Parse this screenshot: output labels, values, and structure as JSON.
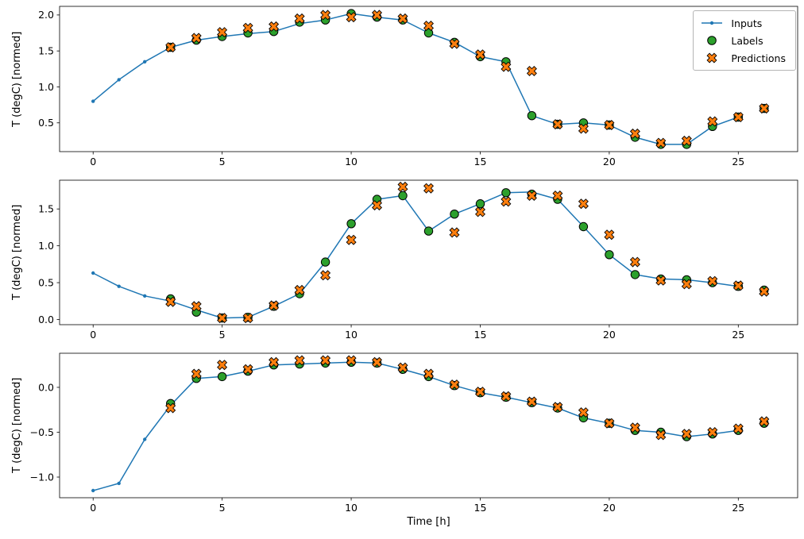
{
  "figure": {
    "background": "#ffffff"
  },
  "colors": {
    "inputs": "#1f77b4",
    "labels": "#2ca02c",
    "predictions": "#ff7f0e",
    "edge": "#000000"
  },
  "legend": {
    "items": [
      {
        "label": "Inputs"
      },
      {
        "label": "Labels"
      },
      {
        "label": "Predictions"
      }
    ]
  },
  "chart_data": [
    {
      "type": "line",
      "title": "",
      "ylabel": "T (degC) [normed]",
      "xlabel": "",
      "xlim": [
        -1.3,
        27.3
      ],
      "ylim": [
        0.1,
        2.12
      ],
      "xticks": [
        0,
        5,
        10,
        15,
        20,
        25
      ],
      "yticks": [
        0.5,
        1.0,
        1.5,
        2.0
      ],
      "grid": false,
      "legend_position": "upper right",
      "series": [
        {
          "name": "Inputs",
          "type": "line",
          "marker": "dot",
          "x": [
            0,
            1,
            2,
            3,
            4,
            5,
            6,
            7,
            8,
            9,
            10,
            11,
            12,
            13,
            14,
            15,
            16,
            17,
            18,
            19,
            20,
            21,
            22,
            23,
            24,
            25
          ],
          "y": [
            0.8,
            1.1,
            1.35,
            1.55,
            1.65,
            1.7,
            1.74,
            1.77,
            1.88,
            1.93,
            2.02,
            1.97,
            1.93,
            1.75,
            1.62,
            1.42,
            1.35,
            0.6,
            0.48,
            0.5,
            0.47,
            0.3,
            0.2,
            0.2,
            0.45,
            0.58
          ]
        },
        {
          "name": "Labels",
          "type": "scatter",
          "marker": "circle",
          "x": [
            3,
            4,
            5,
            6,
            7,
            8,
            9,
            10,
            11,
            12,
            13,
            14,
            15,
            16,
            17,
            18,
            19,
            20,
            21,
            22,
            23,
            24,
            25,
            26
          ],
          "y": [
            1.55,
            1.65,
            1.7,
            1.75,
            1.77,
            1.9,
            1.93,
            2.02,
            1.97,
            1.93,
            1.75,
            1.62,
            1.42,
            1.35,
            0.6,
            0.48,
            0.5,
            0.47,
            0.3,
            0.2,
            0.2,
            0.45,
            0.58,
            0.7
          ]
        },
        {
          "name": "Predictions",
          "type": "scatter",
          "marker": "X",
          "x": [
            3,
            4,
            5,
            6,
            7,
            8,
            9,
            10,
            11,
            12,
            13,
            14,
            15,
            16,
            17,
            18,
            19,
            20,
            21,
            22,
            23,
            24,
            25,
            26
          ],
          "y": [
            1.55,
            1.68,
            1.76,
            1.82,
            1.84,
            1.95,
            2.0,
            1.97,
            2.0,
            1.95,
            1.85,
            1.6,
            1.45,
            1.28,
            1.22,
            0.48,
            0.42,
            0.47,
            0.35,
            0.22,
            0.25,
            0.52,
            0.58,
            0.7
          ]
        }
      ]
    },
    {
      "type": "line",
      "title": "",
      "ylabel": "T (degC) [normed]",
      "xlabel": "",
      "xlim": [
        -1.3,
        27.3
      ],
      "ylim": [
        -0.07,
        1.89
      ],
      "xticks": [
        0,
        5,
        10,
        15,
        20,
        25
      ],
      "yticks": [
        0.0,
        0.5,
        1.0,
        1.5
      ],
      "grid": false,
      "series": [
        {
          "name": "Inputs",
          "type": "line",
          "marker": "dot",
          "x": [
            0,
            1,
            2,
            3,
            4,
            5,
            6,
            7,
            8,
            9,
            10,
            11,
            12,
            13,
            14,
            15,
            16,
            17,
            18,
            19,
            20,
            21,
            22,
            23,
            24,
            25
          ],
          "y": [
            0.63,
            0.45,
            0.32,
            0.25,
            0.13,
            0.02,
            0.03,
            0.18,
            0.35,
            0.78,
            1.3,
            1.63,
            1.68,
            1.2,
            1.43,
            1.57,
            1.72,
            1.73,
            1.63,
            1.26,
            0.88,
            0.61,
            0.55,
            0.54,
            0.5,
            0.45
          ]
        },
        {
          "name": "Labels",
          "type": "scatter",
          "marker": "circle",
          "x": [
            3,
            4,
            5,
            6,
            7,
            8,
            9,
            10,
            11,
            12,
            13,
            14,
            15,
            16,
            17,
            18,
            19,
            20,
            21,
            22,
            23,
            24,
            25,
            26
          ],
          "y": [
            0.28,
            0.1,
            0.02,
            0.03,
            0.18,
            0.35,
            0.78,
            1.3,
            1.63,
            1.68,
            1.2,
            1.43,
            1.57,
            1.72,
            1.7,
            1.63,
            1.26,
            0.88,
            0.61,
            0.55,
            0.54,
            0.5,
            0.45,
            0.4
          ]
        },
        {
          "name": "Predictions",
          "type": "scatter",
          "marker": "X",
          "x": [
            3,
            4,
            5,
            6,
            7,
            8,
            9,
            10,
            11,
            12,
            13,
            14,
            15,
            16,
            17,
            18,
            19,
            20,
            21,
            22,
            23,
            24,
            25,
            26
          ],
          "y": [
            0.24,
            0.18,
            0.02,
            0.02,
            0.19,
            0.4,
            0.6,
            1.08,
            1.55,
            1.8,
            1.78,
            1.18,
            1.46,
            1.6,
            1.68,
            1.68,
            1.57,
            1.15,
            0.78,
            0.53,
            0.48,
            0.52,
            0.46,
            0.38
          ]
        }
      ]
    },
    {
      "type": "line",
      "title": "",
      "ylabel": "T (degC) [normed]",
      "xlabel": "Time [h]",
      "xlim": [
        -1.3,
        27.3
      ],
      "ylim": [
        -1.23,
        0.38
      ],
      "xticks": [
        0,
        5,
        10,
        15,
        20,
        25
      ],
      "yticks": [
        -1.0,
        -0.5,
        0.0
      ],
      "grid": false,
      "series": [
        {
          "name": "Inputs",
          "type": "line",
          "marker": "dot",
          "x": [
            0,
            1,
            2,
            3,
            4,
            5,
            6,
            7,
            8,
            9,
            10,
            11,
            12,
            13,
            14,
            15,
            16,
            17,
            18,
            19,
            20,
            21,
            22,
            23,
            24,
            25
          ],
          "y": [
            -1.15,
            -1.07,
            -0.58,
            -0.2,
            0.1,
            0.12,
            0.18,
            0.25,
            0.26,
            0.27,
            0.28,
            0.27,
            0.2,
            0.12,
            0.02,
            -0.06,
            -0.11,
            -0.17,
            -0.23,
            -0.34,
            -0.4,
            -0.48,
            -0.5,
            -0.55,
            -0.52,
            -0.48
          ]
        },
        {
          "name": "Labels",
          "type": "scatter",
          "marker": "circle",
          "x": [
            3,
            4,
            5,
            6,
            7,
            8,
            9,
            10,
            11,
            12,
            13,
            14,
            15,
            16,
            17,
            18,
            19,
            20,
            21,
            22,
            23,
            24,
            25,
            26
          ],
          "y": [
            -0.18,
            0.1,
            0.12,
            0.18,
            0.25,
            0.26,
            0.27,
            0.28,
            0.27,
            0.2,
            0.12,
            0.02,
            -0.06,
            -0.11,
            -0.17,
            -0.23,
            -0.34,
            -0.4,
            -0.48,
            -0.5,
            -0.55,
            -0.52,
            -0.48,
            -0.4
          ]
        },
        {
          "name": "Predictions",
          "type": "scatter",
          "marker": "X",
          "x": [
            3,
            4,
            5,
            6,
            7,
            8,
            9,
            10,
            11,
            12,
            13,
            14,
            15,
            16,
            17,
            18,
            19,
            20,
            21,
            22,
            23,
            24,
            25,
            26
          ],
          "y": [
            -0.23,
            0.15,
            0.25,
            0.2,
            0.28,
            0.3,
            0.3,
            0.3,
            0.28,
            0.22,
            0.15,
            0.03,
            -0.05,
            -0.1,
            -0.16,
            -0.22,
            -0.28,
            -0.4,
            -0.45,
            -0.53,
            -0.52,
            -0.5,
            -0.46,
            -0.38
          ]
        }
      ]
    }
  ]
}
